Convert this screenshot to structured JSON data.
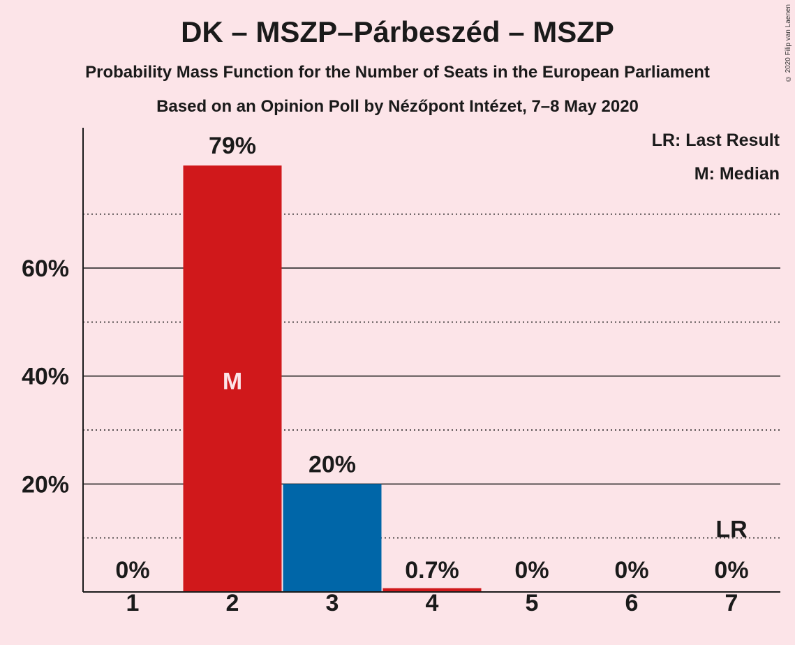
{
  "title": "DK – MSZP–Párbeszéd – MSZP",
  "subtitle1": "Probability Mass Function for the Number of Seats in the European Parliament",
  "subtitle2": "Based on an Opinion Poll by Nézőpont Intézet, 7–8 May 2020",
  "copyright": "© 2020 Filip van Laenen",
  "legend": {
    "last_result": "LR: Last Result",
    "median": "M: Median"
  },
  "chart_data": {
    "type": "bar",
    "categories": [
      "1",
      "2",
      "3",
      "4",
      "5",
      "6",
      "7"
    ],
    "values": [
      0,
      79,
      20,
      0.7,
      0,
      0,
      0
    ],
    "value_labels": [
      "0%",
      "79%",
      "20%",
      "0.7%",
      "0%",
      "0%",
      "0%"
    ],
    "bar_colors": [
      "#d0181b",
      "#d0181b",
      "#0066a8",
      "#d0181b",
      "#d0181b",
      "#d0181b",
      "#d0181b"
    ],
    "ylim": [
      0,
      86
    ],
    "yticks": [
      20,
      40,
      60
    ],
    "ytick_labels": [
      "20%",
      "40%",
      "60%"
    ],
    "minor_gridlines": [
      10,
      30,
      50,
      70
    ],
    "median_category": "2",
    "median_marker": "M",
    "last_result_category": "7",
    "last_result_marker": "LR",
    "median_marker_color": "#fce4e8"
  }
}
